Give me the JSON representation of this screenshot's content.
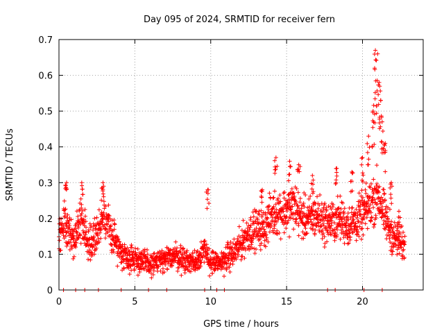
{
  "chart_data": {
    "type": "scatter",
    "title": "Day 095 of 2024, SRMTID for receiver fern",
    "xlabel": "GPS time / hours",
    "ylabel": "SRMTID / TECUs",
    "xlim": [
      0,
      24
    ],
    "ylim": [
      0,
      0.7
    ],
    "xticks": [
      0,
      5,
      10,
      15,
      20
    ],
    "xtick_labels": [
      "0",
      "5",
      "10",
      "15",
      "20"
    ],
    "yticks": [
      0,
      0.1,
      0.2,
      0.3,
      0.4,
      0.5,
      0.6,
      0.7
    ],
    "ytick_labels": [
      "0",
      "0.1",
      "0.2",
      "0.3",
      "0.4",
      "0.5",
      "0.6",
      "0.7"
    ],
    "grid": true,
    "marker": "+",
    "color": "#ff0000",
    "series": [
      {
        "name": "fern",
        "trend": [
          [
            0.0,
            0.15
          ],
          [
            0.3,
            0.2
          ],
          [
            0.6,
            0.17
          ],
          [
            1.0,
            0.14
          ],
          [
            1.4,
            0.2
          ],
          [
            2.0,
            0.13
          ],
          [
            2.5,
            0.16
          ],
          [
            3.0,
            0.2
          ],
          [
            3.6,
            0.15
          ],
          [
            4.0,
            0.11
          ],
          [
            4.6,
            0.09
          ],
          [
            5.0,
            0.09
          ],
          [
            5.5,
            0.08
          ],
          [
            6.0,
            0.07
          ],
          [
            6.5,
            0.08
          ],
          [
            7.0,
            0.08
          ],
          [
            7.5,
            0.1
          ],
          [
            8.0,
            0.09
          ],
          [
            8.5,
            0.08
          ],
          [
            9.0,
            0.08
          ],
          [
            9.5,
            0.11
          ],
          [
            10.0,
            0.08
          ],
          [
            10.5,
            0.07
          ],
          [
            11.0,
            0.09
          ],
          [
            11.5,
            0.1
          ],
          [
            12.0,
            0.13
          ],
          [
            12.5,
            0.16
          ],
          [
            13.0,
            0.17
          ],
          [
            13.5,
            0.17
          ],
          [
            14.0,
            0.21
          ],
          [
            14.5,
            0.22
          ],
          [
            15.0,
            0.22
          ],
          [
            15.5,
            0.24
          ],
          [
            16.0,
            0.2
          ],
          [
            16.5,
            0.2
          ],
          [
            17.0,
            0.21
          ],
          [
            17.5,
            0.19
          ],
          [
            18.0,
            0.19
          ],
          [
            18.5,
            0.2
          ],
          [
            19.0,
            0.18
          ],
          [
            19.5,
            0.19
          ],
          [
            20.0,
            0.21
          ],
          [
            20.5,
            0.24
          ],
          [
            21.0,
            0.27
          ],
          [
            21.5,
            0.2
          ],
          [
            22.0,
            0.15
          ],
          [
            22.5,
            0.13
          ],
          [
            22.8,
            0.12
          ]
        ],
        "spikes": [
          [
            0.5,
            0.3
          ],
          [
            1.5,
            0.3
          ],
          [
            2.9,
            0.3
          ],
          [
            9.8,
            0.28
          ],
          [
            13.4,
            0.28
          ],
          [
            14.3,
            0.37
          ],
          [
            15.2,
            0.36
          ],
          [
            15.8,
            0.35
          ],
          [
            16.7,
            0.32
          ],
          [
            18.3,
            0.34
          ],
          [
            19.3,
            0.33
          ],
          [
            20.0,
            0.37
          ],
          [
            20.4,
            0.43
          ],
          [
            20.7,
            0.5
          ],
          [
            20.8,
            0.62
          ],
          [
            20.85,
            0.67
          ],
          [
            21.0,
            0.66
          ],
          [
            21.1,
            0.58
          ],
          [
            21.2,
            0.53
          ],
          [
            21.3,
            0.47
          ],
          [
            21.5,
            0.41
          ],
          [
            21.9,
            0.3
          ],
          [
            22.4,
            0.22
          ]
        ],
        "zero_points": [
          0.3,
          1.1,
          1.7,
          2.6,
          4.1,
          5.9,
          7.1,
          9.6,
          10.4,
          10.9,
          17.7,
          18.2,
          20.1,
          21.3
        ]
      }
    ]
  }
}
